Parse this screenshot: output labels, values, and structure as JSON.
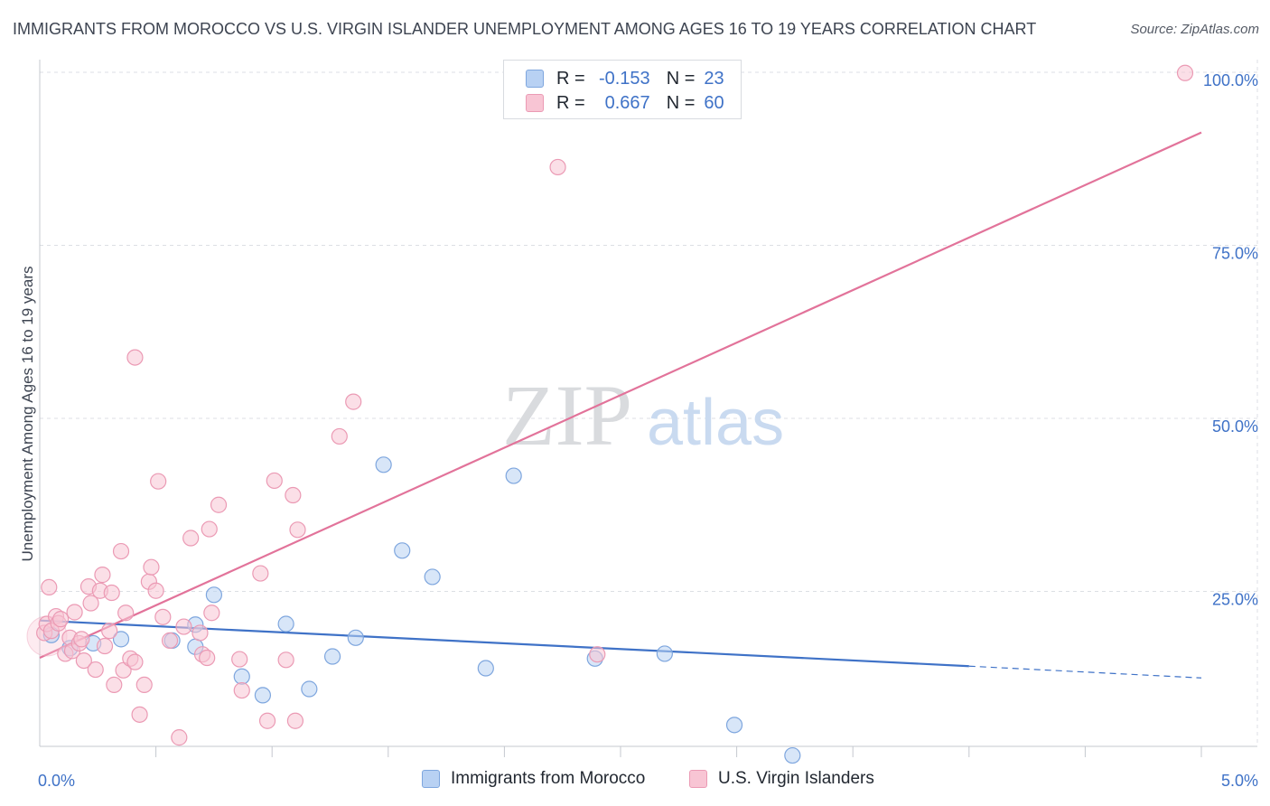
{
  "title": "IMMIGRANTS FROM MOROCCO VS U.S. VIRGIN ISLANDER UNEMPLOYMENT AMONG AGES 16 TO 19 YEARS CORRELATION CHART",
  "source": "Source: ZipAtlas.com",
  "watermark": {
    "zip": "ZIP",
    "atlas": "atlas"
  },
  "colors": {
    "blue_fill": "#b8d1f3",
    "blue_stroke": "#7ea6de",
    "blue_line": "#3f72c7",
    "pink_fill": "#f8c5d4",
    "pink_stroke": "#eb9ab4",
    "pink_line": "#e2739a",
    "tick_label": "#3f72c7",
    "grid": "#dcdfe4"
  },
  "legend": {
    "rows": [
      {
        "r_label": "R =",
        "r_value": "-0.153",
        "n_label": "N =",
        "n_value": "23"
      },
      {
        "r_label": "R =",
        "r_value": "0.667",
        "n_label": "N =",
        "n_value": "60"
      }
    ]
  },
  "chart_data": {
    "type": "scatter",
    "title": "IMMIGRANTS FROM MOROCCO VS U.S. VIRGIN ISLANDER UNEMPLOYMENT AMONG AGES 16 TO 19 YEARS CORRELATION CHART",
    "xlabel": "",
    "ylabel": "Unemployment Among Ages 16 to 19 years",
    "xlim": [
      0,
      5
    ],
    "ylim": [
      0,
      102
    ],
    "x_tick_labels": {
      "left": "0.0%",
      "right": "5.0%"
    },
    "y_ticks": [
      {
        "value": 25,
        "label": "25.0%"
      },
      {
        "value": 50,
        "label": "50.0%"
      },
      {
        "value": 75,
        "label": "75.0%"
      },
      {
        "value": 100,
        "label": "100.0%"
      }
    ],
    "series": [
      {
        "name": "Immigrants from Morocco",
        "color": "blue",
        "r": -0.153,
        "n": 23,
        "trend": {
          "x0": 0,
          "y0": 20.8,
          "x1": 4.0,
          "y1": 14.2,
          "dash_to_x": 5.0,
          "dash_y": 12.5
        },
        "points": [
          [
            0.05,
            18.7
          ],
          [
            0.13,
            16.8
          ],
          [
            0.23,
            17.5
          ],
          [
            0.35,
            18.1
          ],
          [
            0.57,
            17.9
          ],
          [
            0.67,
            17.0
          ],
          [
            0.67,
            20.2
          ],
          [
            0.75,
            24.5
          ],
          [
            0.87,
            12.7
          ],
          [
            0.96,
            10.0
          ],
          [
            1.06,
            20.3
          ],
          [
            1.16,
            10.9
          ],
          [
            1.26,
            15.6
          ],
          [
            1.36,
            18.3
          ],
          [
            1.48,
            43.3
          ],
          [
            1.56,
            30.9
          ],
          [
            1.69,
            27.1
          ],
          [
            1.92,
            13.9
          ],
          [
            2.04,
            41.7
          ],
          [
            2.39,
            15.3
          ],
          [
            2.69,
            16.0
          ],
          [
            2.99,
            5.7
          ],
          [
            3.24,
            1.3
          ]
        ]
      },
      {
        "name": "U.S. Virgin Islanders",
        "color": "pink",
        "r": 0.667,
        "n": 60,
        "trend": {
          "x0": 0,
          "y0": 15.4,
          "x1": 5.0,
          "y1": 91.3
        },
        "points": [
          [
            0.02,
            19.0
          ],
          [
            0.03,
            20.3
          ],
          [
            0.04,
            25.6
          ],
          [
            0.05,
            19.3
          ],
          [
            0.07,
            21.4
          ],
          [
            0.08,
            20.4
          ],
          [
            0.09,
            21.0
          ],
          [
            0.11,
            16.0
          ],
          [
            0.13,
            18.3
          ],
          [
            0.14,
            16.4
          ],
          [
            0.15,
            22.0
          ],
          [
            0.17,
            17.5
          ],
          [
            0.18,
            18.1
          ],
          [
            0.19,
            15.0
          ],
          [
            0.21,
            25.7
          ],
          [
            0.22,
            23.3
          ],
          [
            0.24,
            13.7
          ],
          [
            0.26,
            25.1
          ],
          [
            0.27,
            27.4
          ],
          [
            0.28,
            17.1
          ],
          [
            0.3,
            19.3
          ],
          [
            0.31,
            24.8
          ],
          [
            0.32,
            11.5
          ],
          [
            0.35,
            30.8
          ],
          [
            0.36,
            13.6
          ],
          [
            0.37,
            21.9
          ],
          [
            0.39,
            15.3
          ],
          [
            0.41,
            14.8
          ],
          [
            0.41,
            58.8
          ],
          [
            0.43,
            7.2
          ],
          [
            0.45,
            11.5
          ],
          [
            0.47,
            26.4
          ],
          [
            0.48,
            28.5
          ],
          [
            0.5,
            25.1
          ],
          [
            0.51,
            40.9
          ],
          [
            0.53,
            21.3
          ],
          [
            0.56,
            17.9
          ],
          [
            0.6,
            3.9
          ],
          [
            0.62,
            19.9
          ],
          [
            0.65,
            32.7
          ],
          [
            0.69,
            19.0
          ],
          [
            0.7,
            15.9
          ],
          [
            0.72,
            15.4
          ],
          [
            0.73,
            34.0
          ],
          [
            0.74,
            21.9
          ],
          [
            0.77,
            37.5
          ],
          [
            0.86,
            15.2
          ],
          [
            0.87,
            10.7
          ],
          [
            0.95,
            27.6
          ],
          [
            0.98,
            6.3
          ],
          [
            1.01,
            41.0
          ],
          [
            1.06,
            15.1
          ],
          [
            1.09,
            38.9
          ],
          [
            1.1,
            6.3
          ],
          [
            1.11,
            33.9
          ],
          [
            1.29,
            47.4
          ],
          [
            1.35,
            52.4
          ],
          [
            2.23,
            86.3
          ],
          [
            2.4,
            15.9
          ],
          [
            4.93,
            99.9
          ]
        ]
      }
    ]
  },
  "bottom_legend": [
    {
      "label": "Immigrants from Morocco"
    },
    {
      "label": "U.S. Virgin Islanders"
    }
  ]
}
